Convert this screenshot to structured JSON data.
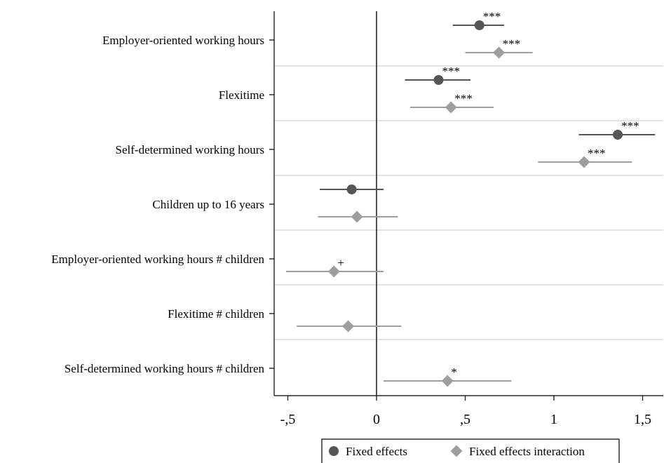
{
  "chart_data": {
    "type": "scatter",
    "title": "",
    "xlabel": "",
    "ylabel": "",
    "xlim": [
      -0.52,
      1.6
    ],
    "xticks": [
      {
        "value": -0.5,
        "label": "-,5"
      },
      {
        "value": 0,
        "label": "0"
      },
      {
        "value": 0.5,
        "label": ",5"
      },
      {
        "value": 1,
        "label": "1"
      },
      {
        "value": 1.5,
        "label": "1,5"
      }
    ],
    "reference_line": 0,
    "categories": [
      "Employer-oriented working hours",
      "Flexitime",
      "Self-determined working hours",
      "Children up to 16 years",
      "Employer-oriented working hours # children",
      "Flexitime # children",
      "Self-determined working hours # children"
    ],
    "series": [
      {
        "name": "Fixed effects",
        "marker": "circle",
        "color": "#555555",
        "points": [
          {
            "estimate": 0.58,
            "ci_low": 0.43,
            "ci_high": 0.72,
            "sig": "***"
          },
          {
            "estimate": 0.35,
            "ci_low": 0.16,
            "ci_high": 0.53,
            "sig": "***"
          },
          {
            "estimate": 1.36,
            "ci_low": 1.14,
            "ci_high": 1.57,
            "sig": "***"
          },
          {
            "estimate": -0.14,
            "ci_low": -0.32,
            "ci_high": 0.04,
            "sig": ""
          },
          null,
          null,
          null
        ]
      },
      {
        "name": "Fixed effects interaction",
        "marker": "diamond",
        "color": "#9e9e9e",
        "points": [
          {
            "estimate": 0.69,
            "ci_low": 0.5,
            "ci_high": 0.88,
            "sig": "***"
          },
          {
            "estimate": 0.42,
            "ci_low": 0.19,
            "ci_high": 0.66,
            "sig": "***"
          },
          {
            "estimate": 1.17,
            "ci_low": 0.91,
            "ci_high": 1.44,
            "sig": "***"
          },
          {
            "estimate": -0.11,
            "ci_low": -0.33,
            "ci_high": 0.12,
            "sig": ""
          },
          {
            "estimate": -0.24,
            "ci_low": -0.51,
            "ci_high": 0.04,
            "sig": "+"
          },
          {
            "estimate": -0.16,
            "ci_low": -0.45,
            "ci_high": 0.14,
            "sig": ""
          },
          {
            "estimate": 0.4,
            "ci_low": 0.04,
            "ci_high": 0.76,
            "sig": "*"
          }
        ]
      }
    ],
    "legend": {
      "position": "bottom",
      "entries": [
        "Fixed effects",
        "Fixed effects interaction"
      ]
    },
    "grid": {
      "horizontal_separators": true,
      "vertical": false
    }
  }
}
